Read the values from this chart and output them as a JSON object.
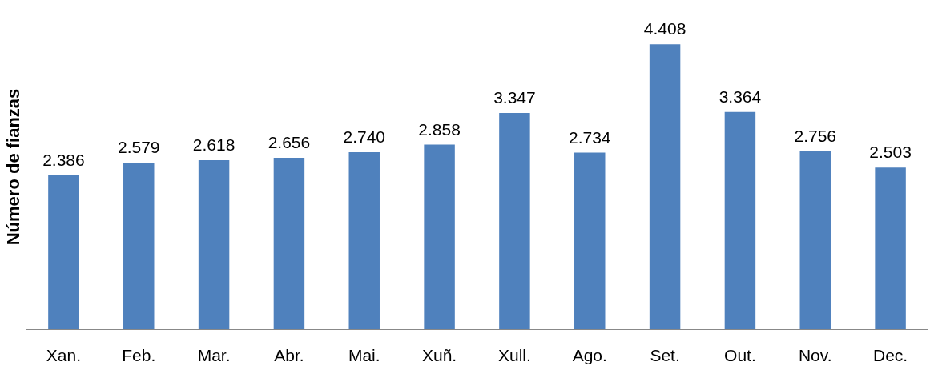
{
  "chart_data": {
    "type": "bar",
    "ylabel": "Número de fianzas",
    "categories": [
      "Xan.",
      "Feb.",
      "Mar.",
      "Abr.",
      "Mai.",
      "Xuñ.",
      "Xull.",
      "Ago.",
      "Set.",
      "Out.",
      "Nov.",
      "Dec."
    ],
    "values": [
      2386,
      2579,
      2618,
      2656,
      2740,
      2858,
      3347,
      2734,
      4408,
      3364,
      2756,
      2503
    ],
    "value_labels": [
      "2.386",
      "2.579",
      "2.618",
      "2.656",
      "2.740",
      "2.858",
      "3.347",
      "2.734",
      "4.408",
      "3.364",
      "2.756",
      "2.503"
    ],
    "color": "#4f81bd",
    "grid": false
  }
}
